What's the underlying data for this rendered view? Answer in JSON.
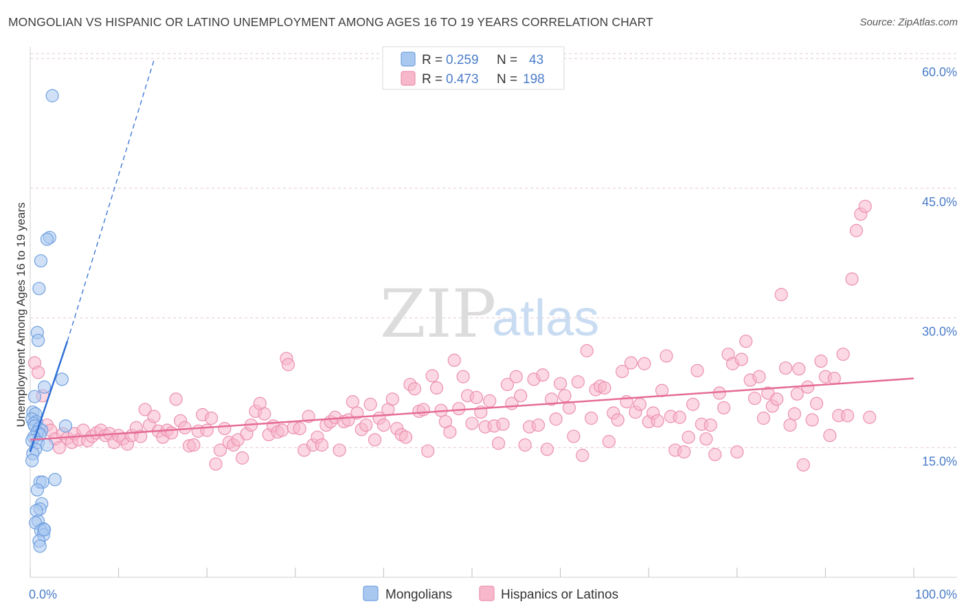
{
  "title": "MONGOLIAN VS HISPANIC OR LATINO UNEMPLOYMENT AMONG AGES 16 TO 19 YEARS CORRELATION CHART",
  "source": "Source: ZipAtlas.com",
  "watermark": {
    "zip": "ZIP",
    "atlas": "atlas"
  },
  "colors": {
    "mongolians_fill": "#a9c8f0",
    "mongolians_stroke": "#6f9fe0",
    "mongolians_line": "#2f6fd6",
    "hispanics_fill": "#f7b8cc",
    "hispanics_stroke": "#ec8fae",
    "hispanics_line": "#e56b96",
    "grid": "#e2c7d1",
    "axis_label": "#4a7cc9"
  },
  "legend": {
    "rows": [
      {
        "r_label": "R =",
        "r_value": "0.259",
        "n_label": "N =",
        "n_value": "43"
      },
      {
        "r_label": "R =",
        "r_value": "0.473",
        "n_label": "N =",
        "n_value": "198"
      }
    ]
  },
  "bottom_legend": [
    "Mongolians",
    "Hispanics or Latinos"
  ],
  "chart_data": {
    "type": "scatter",
    "title": "MONGOLIAN VS HISPANIC OR LATINO UNEMPLOYMENT AMONG AGES 16 TO 19 YEARS CORRELATION CHART",
    "xlabel": "",
    "ylabel": "Unemployment Among Ages 16 to 19 years",
    "xlim": [
      0,
      100
    ],
    "ylim": [
      0,
      62
    ],
    "x_tick_labels": [
      "0.0%",
      "100.0%"
    ],
    "y_ticks": [
      15,
      30,
      45,
      60
    ],
    "y_tick_labels": [
      "15.0%",
      "30.0%",
      "45.0%",
      "60.0%"
    ],
    "grid": true,
    "legend_position": "top-center",
    "series": [
      {
        "name": "Mongolians",
        "r": 0.259,
        "n": 43,
        "trend": {
          "x0": 0.0,
          "y0": 14.5,
          "x1": 4.2,
          "y1": 27.3,
          "dash_to_x": 14.0,
          "dash_to_y": 59.8
        },
        "points": [
          [
            2.5,
            55.7
          ],
          [
            2.2,
            39.3
          ],
          [
            1.9,
            39.1
          ],
          [
            1.2,
            36.6
          ],
          [
            1.0,
            33.4
          ],
          [
            0.8,
            28.3
          ],
          [
            0.9,
            27.4
          ],
          [
            3.6,
            22.9
          ],
          [
            1.6,
            22.0
          ],
          [
            0.5,
            20.9
          ],
          [
            0.3,
            19.1
          ],
          [
            0.6,
            18.9
          ],
          [
            0.2,
            18.3
          ],
          [
            0.7,
            18.0
          ],
          [
            0.4,
            17.8
          ],
          [
            0.5,
            17.5
          ],
          [
            4.0,
            17.5
          ],
          [
            1.0,
            17.2
          ],
          [
            1.3,
            17.0
          ],
          [
            0.8,
            16.8
          ],
          [
            1.1,
            16.5
          ],
          [
            0.4,
            16.2
          ],
          [
            0.2,
            15.8
          ],
          [
            0.9,
            15.6
          ],
          [
            1.9,
            15.3
          ],
          [
            0.6,
            14.8
          ],
          [
            0.3,
            14.3
          ],
          [
            0.2,
            13.5
          ],
          [
            2.8,
            11.3
          ],
          [
            1.1,
            11.0
          ],
          [
            1.4,
            11.0
          ],
          [
            0.8,
            10.1
          ],
          [
            1.3,
            8.5
          ],
          [
            1.1,
            7.9
          ],
          [
            0.7,
            7.7
          ],
          [
            0.9,
            6.5
          ],
          [
            0.6,
            6.3
          ],
          [
            1.5,
            5.6
          ],
          [
            1.2,
            5.4
          ],
          [
            1.5,
            4.9
          ],
          [
            1.0,
            4.2
          ],
          [
            1.1,
            3.6
          ],
          [
            1.6,
            5.5
          ]
        ]
      },
      {
        "name": "Hispanics or Latinos",
        "r": 0.473,
        "n": 198,
        "trend": {
          "x0": 0.0,
          "y0": 15.9,
          "x1": 100.0,
          "y1": 23.0
        },
        "points": [
          [
            0.5,
            24.8
          ],
          [
            0.9,
            23.7
          ],
          [
            1.4,
            21.0
          ],
          [
            1.9,
            17.6
          ],
          [
            2.3,
            17.0
          ],
          [
            2.8,
            16.0
          ],
          [
            3.3,
            15.0
          ],
          [
            3.7,
            16.6
          ],
          [
            4.2,
            16.1
          ],
          [
            4.7,
            15.6
          ],
          [
            5.0,
            16.6
          ],
          [
            5.5,
            15.9
          ],
          [
            6.0,
            17.0
          ],
          [
            6.5,
            15.8
          ],
          [
            7.0,
            16.3
          ],
          [
            7.5,
            16.7
          ],
          [
            8.0,
            17.0
          ],
          [
            8.5,
            16.4
          ],
          [
            9.0,
            16.6
          ],
          [
            9.5,
            15.6
          ],
          [
            10.0,
            16.4
          ],
          [
            10.5,
            16.0
          ],
          [
            11.0,
            15.4
          ],
          [
            11.5,
            16.4
          ],
          [
            12.0,
            17.3
          ],
          [
            12.5,
            16.3
          ],
          [
            13.0,
            19.4
          ],
          [
            13.5,
            17.6
          ],
          [
            14.0,
            18.6
          ],
          [
            14.5,
            16.9
          ],
          [
            15.0,
            16.2
          ],
          [
            15.5,
            17.0
          ],
          [
            16.0,
            16.7
          ],
          [
            16.5,
            20.6
          ],
          [
            17.0,
            18.1
          ],
          [
            17.5,
            17.3
          ],
          [
            18.0,
            15.2
          ],
          [
            18.5,
            15.3
          ],
          [
            19.0,
            16.9
          ],
          [
            19.5,
            18.8
          ],
          [
            20.0,
            17.0
          ],
          [
            20.5,
            18.4
          ],
          [
            21.0,
            13.1
          ],
          [
            21.5,
            14.7
          ],
          [
            22.0,
            17.2
          ],
          [
            22.5,
            15.6
          ],
          [
            23.0,
            15.3
          ],
          [
            23.5,
            15.9
          ],
          [
            24.0,
            13.8
          ],
          [
            24.5,
            16.6
          ],
          [
            25.0,
            17.6
          ],
          [
            25.5,
            19.2
          ],
          [
            26.0,
            20.1
          ],
          [
            26.5,
            18.9
          ],
          [
            27.0,
            16.5
          ],
          [
            27.5,
            17.5
          ],
          [
            28.0,
            16.8
          ],
          [
            28.5,
            17.0
          ],
          [
            29.0,
            25.3
          ],
          [
            29.2,
            24.6
          ],
          [
            29.8,
            17.3
          ],
          [
            30.5,
            17.2
          ],
          [
            31.0,
            14.7
          ],
          [
            31.5,
            18.6
          ],
          [
            32.0,
            15.3
          ],
          [
            32.5,
            16.2
          ],
          [
            33.0,
            15.3
          ],
          [
            33.5,
            17.6
          ],
          [
            34.0,
            18.0
          ],
          [
            34.5,
            18.5
          ],
          [
            35.0,
            14.7
          ],
          [
            35.5,
            18.0
          ],
          [
            36.0,
            18.2
          ],
          [
            36.5,
            20.3
          ],
          [
            37.0,
            19.0
          ],
          [
            37.5,
            17.1
          ],
          [
            38.0,
            17.6
          ],
          [
            38.5,
            20.0
          ],
          [
            39.0,
            15.9
          ],
          [
            39.5,
            18.4
          ],
          [
            40.0,
            17.6
          ],
          [
            40.5,
            19.4
          ],
          [
            41.0,
            20.6
          ],
          [
            41.5,
            17.2
          ],
          [
            42.0,
            16.5
          ],
          [
            42.5,
            16.2
          ],
          [
            43.0,
            22.3
          ],
          [
            43.5,
            21.8
          ],
          [
            44.0,
            19.2
          ],
          [
            44.5,
            19.4
          ],
          [
            45.0,
            14.6
          ],
          [
            45.5,
            23.3
          ],
          [
            46.0,
            21.9
          ],
          [
            46.5,
            19.3
          ],
          [
            47.0,
            18.0
          ],
          [
            47.5,
            16.8
          ],
          [
            48.0,
            25.1
          ],
          [
            48.5,
            19.5
          ],
          [
            49.0,
            23.2
          ],
          [
            49.5,
            21.0
          ],
          [
            50.0,
            17.8
          ],
          [
            50.5,
            20.8
          ],
          [
            51.0,
            19.1
          ],
          [
            51.5,
            17.4
          ],
          [
            52.0,
            20.4
          ],
          [
            52.5,
            17.5
          ],
          [
            53.0,
            15.5
          ],
          [
            53.5,
            17.7
          ],
          [
            54.0,
            22.3
          ],
          [
            54.5,
            20.1
          ],
          [
            55.0,
            23.2
          ],
          [
            55.5,
            21.0
          ],
          [
            56.0,
            15.3
          ],
          [
            56.5,
            17.4
          ],
          [
            57.0,
            22.9
          ],
          [
            57.5,
            17.6
          ],
          [
            58.0,
            23.4
          ],
          [
            58.5,
            14.8
          ],
          [
            59.0,
            20.6
          ],
          [
            59.5,
            18.3
          ],
          [
            60.0,
            22.4
          ],
          [
            60.5,
            21.0
          ],
          [
            61.0,
            19.6
          ],
          [
            61.5,
            16.3
          ],
          [
            62.0,
            22.6
          ],
          [
            62.5,
            14.1
          ],
          [
            63.0,
            26.2
          ],
          [
            63.5,
            18.4
          ],
          [
            64.0,
            21.7
          ],
          [
            64.5,
            22.1
          ],
          [
            65.0,
            21.9
          ],
          [
            65.5,
            15.7
          ],
          [
            66.0,
            19.0
          ],
          [
            66.5,
            18.2
          ],
          [
            67.0,
            23.8
          ],
          [
            67.5,
            20.3
          ],
          [
            68.0,
            24.8
          ],
          [
            68.5,
            19.1
          ],
          [
            69.0,
            20.0
          ],
          [
            69.5,
            24.7
          ],
          [
            70.0,
            18.0
          ],
          [
            70.5,
            19.0
          ],
          [
            71.0,
            18.1
          ],
          [
            71.5,
            21.6
          ],
          [
            72.0,
            25.6
          ],
          [
            72.5,
            18.6
          ],
          [
            73.0,
            14.7
          ],
          [
            73.5,
            18.5
          ],
          [
            74.0,
            14.5
          ],
          [
            74.5,
            16.2
          ],
          [
            75.0,
            20.0
          ],
          [
            75.5,
            23.9
          ],
          [
            76.0,
            17.7
          ],
          [
            76.5,
            16.0
          ],
          [
            77.0,
            17.6
          ],
          [
            77.5,
            14.2
          ],
          [
            78.0,
            21.3
          ],
          [
            78.5,
            19.6
          ],
          [
            79.0,
            25.8
          ],
          [
            79.5,
            24.7
          ],
          [
            80.0,
            14.5
          ],
          [
            80.5,
            25.2
          ],
          [
            81.0,
            27.3
          ],
          [
            81.5,
            22.8
          ],
          [
            82.0,
            20.7
          ],
          [
            82.5,
            23.2
          ],
          [
            83.0,
            18.4
          ],
          [
            83.5,
            21.3
          ],
          [
            84.0,
            19.8
          ],
          [
            84.5,
            20.6
          ],
          [
            85.0,
            32.7
          ],
          [
            85.5,
            24.2
          ],
          [
            86.0,
            17.6
          ],
          [
            86.5,
            18.9
          ],
          [
            87.0,
            24.1
          ],
          [
            87.5,
            13.0
          ],
          [
            88.0,
            22.0
          ],
          [
            88.5,
            18.2
          ],
          [
            89.0,
            20.1
          ],
          [
            89.5,
            25.0
          ],
          [
            90.0,
            23.2
          ],
          [
            90.5,
            16.4
          ],
          [
            91.0,
            23.0
          ],
          [
            91.5,
            18.7
          ],
          [
            92.0,
            25.8
          ],
          [
            92.5,
            18.7
          ],
          [
            93.0,
            34.5
          ],
          [
            93.5,
            40.1
          ],
          [
            94.0,
            42.0
          ],
          [
            94.5,
            42.9
          ],
          [
            95.0,
            18.5
          ],
          [
            86.8,
            21.2
          ]
        ]
      }
    ]
  }
}
